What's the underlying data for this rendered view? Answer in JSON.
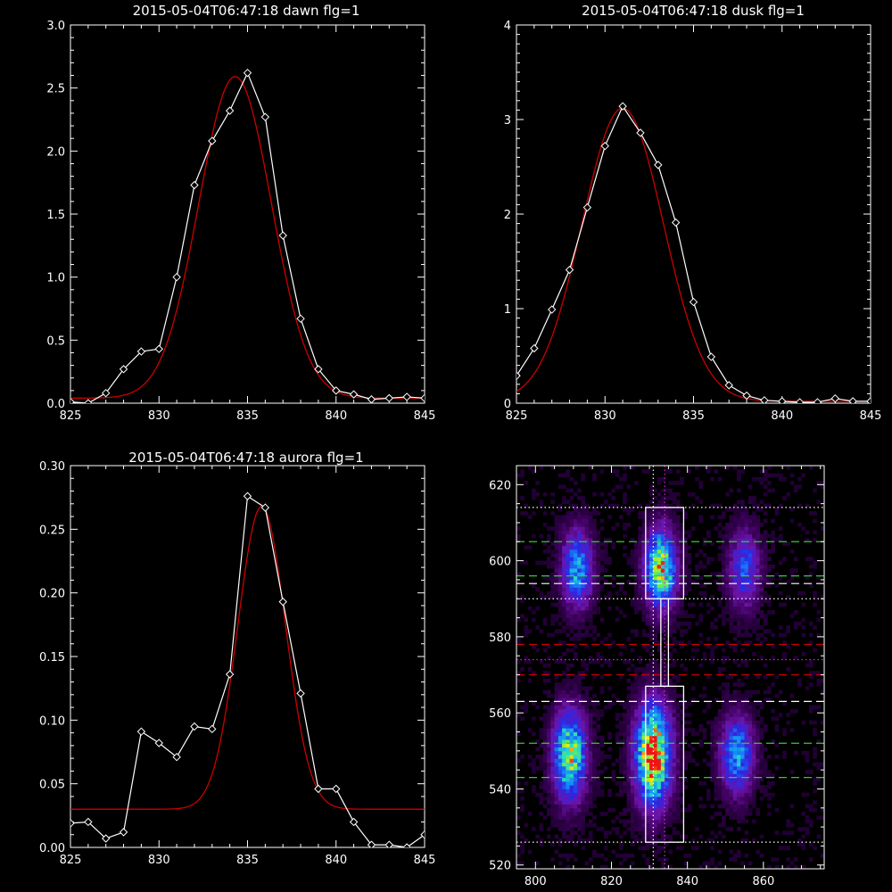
{
  "colors": {
    "background": "#000000",
    "axes": "#ffffff",
    "data": "#ffffff",
    "fit": "#cc0000",
    "green_line": "#33cc33",
    "red_line": "#cc0000",
    "white_line": "#ffffff",
    "magenta_dot": "#cc33cc"
  },
  "chart_data": [
    {
      "id": "dawn",
      "type": "line",
      "title": "2015-05-04T06:47:18 dawn flg=1",
      "xlim": [
        825,
        845
      ],
      "ylim": [
        0,
        3.0
      ],
      "xticks": [
        "825",
        "830",
        "835",
        "840",
        "845"
      ],
      "yticks": [
        "0.0",
        "0.5",
        "1.0",
        "1.5",
        "2.0",
        "2.5",
        "3.0"
      ],
      "series": [
        {
          "marker": "diamond",
          "x": [
            825,
            826,
            827,
            828,
            829,
            830,
            831,
            832,
            833,
            834,
            835,
            836,
            837,
            838,
            839,
            840,
            841,
            842,
            843,
            844,
            845
          ],
          "y": [
            0.01,
            0.0,
            0.08,
            0.27,
            0.41,
            0.43,
            1.0,
            1.73,
            2.08,
            2.32,
            2.62,
            2.27,
            1.33,
            0.67,
            0.27,
            0.1,
            0.07,
            0.03,
            0.04,
            0.05,
            0.04
          ]
        }
      ],
      "fit": {
        "amplitude": 2.55,
        "center": 834.3,
        "sigma": 2.05,
        "offset": 0.04
      }
    },
    {
      "id": "dusk",
      "type": "line",
      "title": "2015-05-04T06:47:18 dusk flg=1",
      "xlim": [
        825,
        845
      ],
      "ylim": [
        0,
        4
      ],
      "xticks": [
        "825",
        "830",
        "835",
        "840",
        "845"
      ],
      "yticks": [
        "0",
        "1",
        "2",
        "3",
        "4"
      ],
      "series": [
        {
          "marker": "diamond",
          "x": [
            825,
            826,
            827,
            828,
            829,
            830,
            831,
            832,
            833,
            834,
            835,
            836,
            837,
            838,
            839,
            840,
            841,
            842,
            843,
            844,
            845
          ],
          "y": [
            0.29,
            0.58,
            0.99,
            1.41,
            2.07,
            2.72,
            3.14,
            2.86,
            2.52,
            1.91,
            1.07,
            0.49,
            0.19,
            0.08,
            0.03,
            0.02,
            0.01,
            0.01,
            0.05,
            0.02,
            0.02
          ]
        }
      ],
      "fit": {
        "amplitude": 3.1,
        "center": 831.0,
        "sigma": 2.3,
        "offset": 0.02
      }
    },
    {
      "id": "aurora",
      "type": "line",
      "title": "2015-05-04T06:47:18 aurora flg=1",
      "xlim": [
        825,
        845
      ],
      "ylim": [
        0,
        0.3
      ],
      "xticks": [
        "825",
        "830",
        "835",
        "840",
        "845"
      ],
      "yticks": [
        "0.00",
        "0.05",
        "0.10",
        "0.15",
        "0.20",
        "0.25",
        "0.30"
      ],
      "series": [
        {
          "marker": "diamond",
          "x": [
            825,
            826,
            827,
            828,
            829,
            830,
            831,
            832,
            833,
            834,
            835,
            836,
            837,
            838,
            839,
            840,
            841,
            842,
            843,
            844,
            845
          ],
          "y": [
            0.019,
            0.02,
            0.007,
            0.012,
            0.091,
            0.082,
            0.071,
            0.095,
            0.093,
            0.136,
            0.276,
            0.267,
            0.193,
            0.121,
            0.046,
            0.046,
            0.02,
            0.002,
            0.002,
            0.0,
            0.01
          ]
        }
      ],
      "fit": {
        "amplitude": 0.238,
        "center": 835.8,
        "sigma": 1.35,
        "offset": 0.03
      }
    },
    {
      "id": "image",
      "type": "heatmap",
      "title": "",
      "xlim": [
        795,
        876
      ],
      "ylim": [
        519,
        625
      ],
      "xticks": [
        "800",
        "820",
        "840",
        "860"
      ],
      "yticks": [
        "520",
        "540",
        "560",
        "580",
        "600",
        "620"
      ],
      "blobs": [
        {
          "x": 809,
          "y": 549,
          "sx": 3.0,
          "sy": 8,
          "amp": 0.78
        },
        {
          "x": 831,
          "y": 549,
          "sx": 3.2,
          "sy": 9,
          "amp": 1.0
        },
        {
          "x": 853,
          "y": 549,
          "sx": 3.0,
          "sy": 7,
          "amp": 0.55
        },
        {
          "x": 811,
          "y": 598,
          "sx": 2.8,
          "sy": 7,
          "amp": 0.55
        },
        {
          "x": 833,
          "y": 598,
          "sx": 2.8,
          "sy": 7,
          "amp": 0.82
        },
        {
          "x": 855,
          "y": 598,
          "sx": 2.8,
          "sy": 7,
          "amp": 0.42
        }
      ],
      "boxes": [
        {
          "x0": 829,
          "x1": 839,
          "y0": 526,
          "y1": 567
        },
        {
          "x0": 829,
          "x1": 839,
          "y0": 590,
          "y1": 614
        },
        {
          "x0": 833,
          "x1": 835,
          "y0": 567,
          "y1": 590
        }
      ],
      "hlines": [
        {
          "y": 605,
          "color": "green",
          "style": "dash"
        },
        {
          "y": 596,
          "color": "green",
          "style": "dash"
        },
        {
          "y": 594,
          "color": "white",
          "style": "dash"
        },
        {
          "y": 578,
          "color": "red",
          "style": "dash"
        },
        {
          "y": 570,
          "color": "red",
          "style": "dash"
        },
        {
          "y": 563,
          "color": "white",
          "style": "dash"
        },
        {
          "y": 552,
          "color": "green",
          "style": "dash"
        },
        {
          "y": 543,
          "color": "green",
          "style": "dash"
        },
        {
          "y": 614,
          "color": "white",
          "style": "dot"
        },
        {
          "y": 590,
          "color": "white",
          "style": "dot"
        },
        {
          "y": 526,
          "color": "white",
          "style": "dot"
        },
        {
          "y": 574,
          "color": "magenta",
          "style": "dot"
        }
      ],
      "vlines": [
        {
          "x": 831,
          "color": "white",
          "style": "dot"
        },
        {
          "x": 834,
          "color": "magenta",
          "style": "dot"
        }
      ]
    }
  ]
}
